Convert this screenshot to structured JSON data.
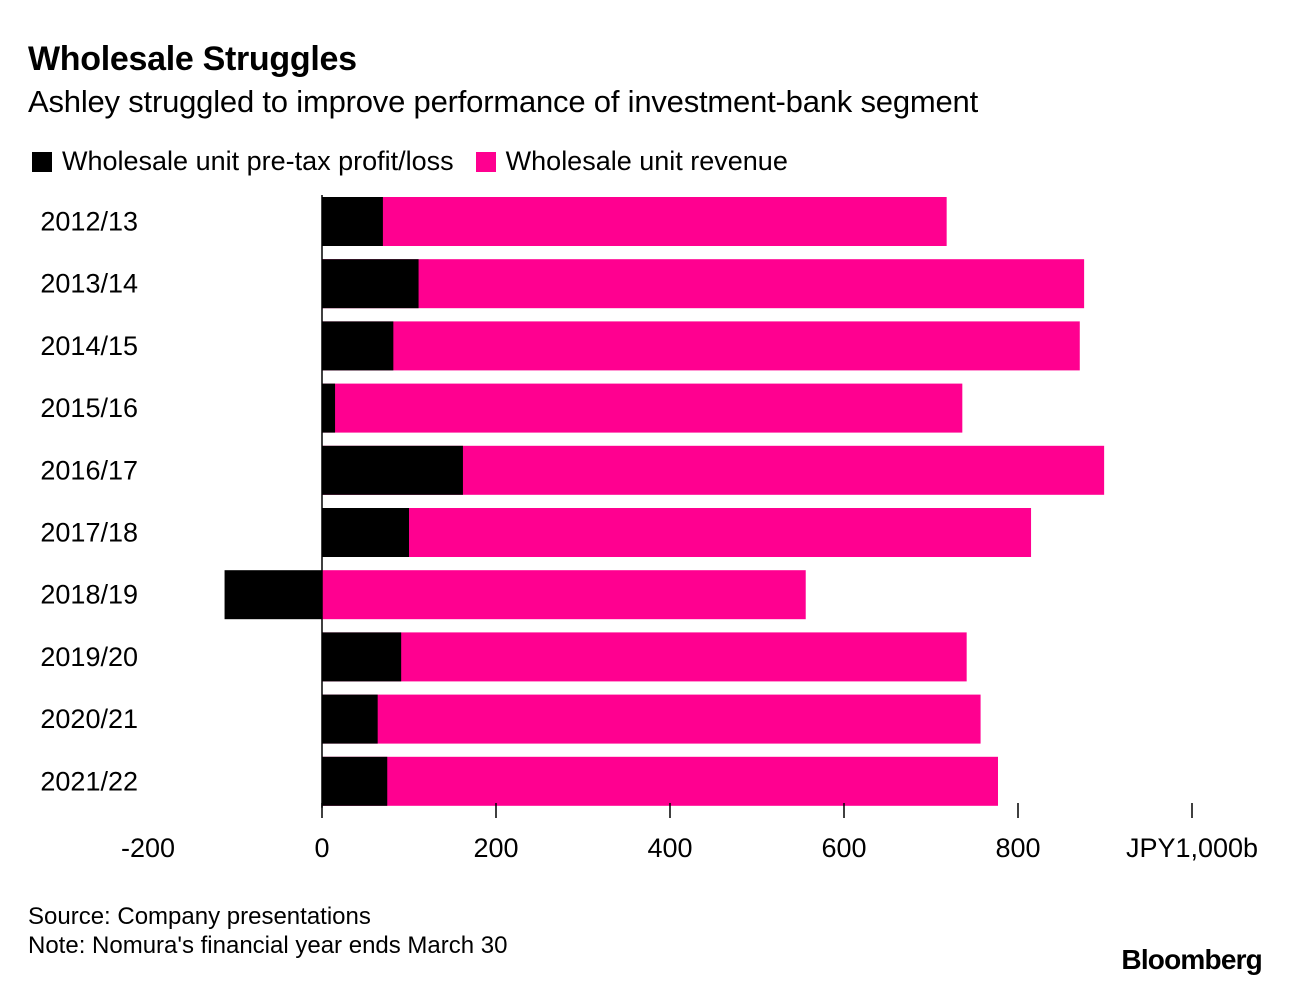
{
  "title": "Wholesale Struggles",
  "subtitle": "Ashley struggled to improve performance of investment-bank segment",
  "footer": {
    "source": "Source: Company presentations",
    "note": "Note: Nomura's financial year ends March 30",
    "brand": "Bloomberg"
  },
  "chart_data": {
    "type": "bar",
    "orientation": "horizontal",
    "stacked": true,
    "categories": [
      "2012/13",
      "2013/14",
      "2014/15",
      "2015/16",
      "2016/17",
      "2017/18",
      "2018/19",
      "2019/20",
      "2020/21",
      "2021/22"
    ],
    "series": [
      {
        "name": "Wholesale unit pre-tax profit/loss",
        "color": "#000000",
        "values": [
          70,
          111,
          82,
          15,
          162,
          100,
          -112,
          91,
          64,
          75
        ]
      },
      {
        "name": "Wholesale unit revenue",
        "color": "#ff0090",
        "values": [
          718,
          876,
          871,
          736,
          899,
          815,
          556,
          741,
          757,
          777
        ]
      }
    ],
    "xlim": [
      -200,
      1000
    ],
    "xticks": [
      -200,
      0,
      200,
      400,
      600,
      800
    ],
    "xtick_labels": [
      "-200",
      "0",
      "200",
      "400",
      "600",
      "800"
    ],
    "unit_label": "JPY1,000b",
    "legend_position": "top-left"
  }
}
